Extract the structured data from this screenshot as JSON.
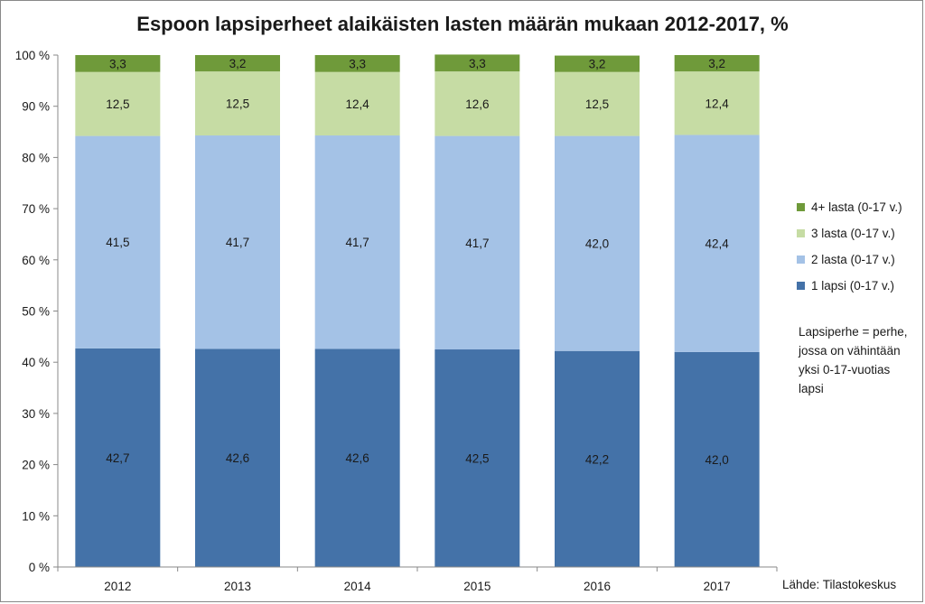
{
  "chart_data": {
    "type": "bar",
    "stacked": true,
    "title": "Espoon lapsiperheet alaikäisten lasten määrän mukaan 2012-2017, %",
    "categories": [
      "2012",
      "2013",
      "2014",
      "2015",
      "2016",
      "2017"
    ],
    "series": [
      {
        "name": "1 lapsi (0-17 v.)",
        "color": "#4472a8",
        "values": [
          42.7,
          42.6,
          42.6,
          42.5,
          42.2,
          42.0
        ],
        "labels": [
          "42,7",
          "42,6",
          "42,6",
          "42,5",
          "42,2",
          "42,0"
        ]
      },
      {
        "name": "2 lasta (0-17 v.)",
        "color": "#a4c2e6",
        "values": [
          41.5,
          41.7,
          41.7,
          41.7,
          42.0,
          42.4
        ],
        "labels": [
          "41,5",
          "41,7",
          "41,7",
          "41,7",
          "42,0",
          "42,4"
        ]
      },
      {
        "name": "3 lasta (0-17 v.)",
        "color": "#c6dca4",
        "values": [
          12.5,
          12.5,
          12.4,
          12.6,
          12.5,
          12.4
        ],
        "labels": [
          "12,5",
          "12,5",
          "12,4",
          "12,6",
          "12,5",
          "12,4"
        ]
      },
      {
        "name": "4+ lasta (0-17 v.)",
        "color": "#6f9a3a",
        "values": [
          3.3,
          3.2,
          3.3,
          3.3,
          3.2,
          3.2
        ],
        "labels": [
          "3,3",
          "3,2",
          "3,3",
          "3,3",
          "3,2",
          "3,2"
        ]
      }
    ],
    "ylim": [
      0,
      100
    ],
    "yticks": [
      0,
      10,
      20,
      30,
      40,
      50,
      60,
      70,
      80,
      90,
      100
    ],
    "ytick_labels": [
      "0 %",
      "10 %",
      "20 %",
      "30 %",
      "40 %",
      "50 %",
      "60 %",
      "70 %",
      "80 %",
      "90 %",
      "100 %"
    ],
    "grid": false,
    "legend_position": "right",
    "legend_order": [
      "4+ lasta (0-17 v.)",
      "3 lasta (0-17 v.)",
      "2 lasta (0-17 v.)",
      "1 lapsi (0-17 v.)"
    ]
  },
  "note": "Lapsiperhe = perhe, jossa on vähintään yksi 0-17-vuotias lapsi",
  "source": "Lähde: Tilastokeskus"
}
